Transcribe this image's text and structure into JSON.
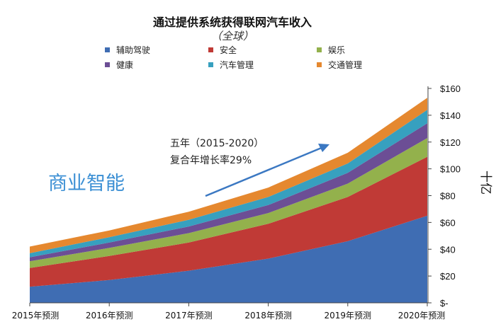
{
  "chart_data": {
    "type": "area",
    "stacked": true,
    "title": "通过提供系统获得联网汽车收入",
    "subtitle": "（全球）",
    "ylabel": "十亿",
    "y_ticks": [
      "$-",
      "$20",
      "$40",
      "$60",
      "$80",
      "$100",
      "$120",
      "$140",
      "$160"
    ],
    "ylim": [
      0,
      160
    ],
    "categories": [
      "2015年预测",
      "2016年预测",
      "2017年预测",
      "2018年预测",
      "2019年预测",
      "2020年预测"
    ],
    "legend_position": "top",
    "series": [
      {
        "name": "辅助驾驶",
        "color": "#3f6db3",
        "values": [
          12,
          17,
          24,
          33,
          46,
          65
        ]
      },
      {
        "name": "安全",
        "color": "#c03a36",
        "values": [
          14,
          18,
          21,
          26,
          33,
          44
        ]
      },
      {
        "name": "娱乐",
        "color": "#93b14c",
        "values": [
          5,
          6,
          7,
          8,
          10,
          14
        ]
      },
      {
        "name": "健康",
        "color": "#6c4e95",
        "values": [
          3,
          4,
          5,
          6,
          8,
          11
        ]
      },
      {
        "name": "汽车管理",
        "color": "#37a0bf",
        "values": [
          3,
          4,
          5,
          6,
          7,
          10
        ]
      },
      {
        "name": "交通管理",
        "color": "#e5882f",
        "values": [
          5,
          5,
          6,
          7,
          8,
          9
        ]
      }
    ],
    "annotations": {
      "growth_line1": "五年（2015-2020）",
      "growth_line2": "复合年增长率29%",
      "arrow_color": "#3b78c2",
      "side_label": "商业智能"
    }
  }
}
